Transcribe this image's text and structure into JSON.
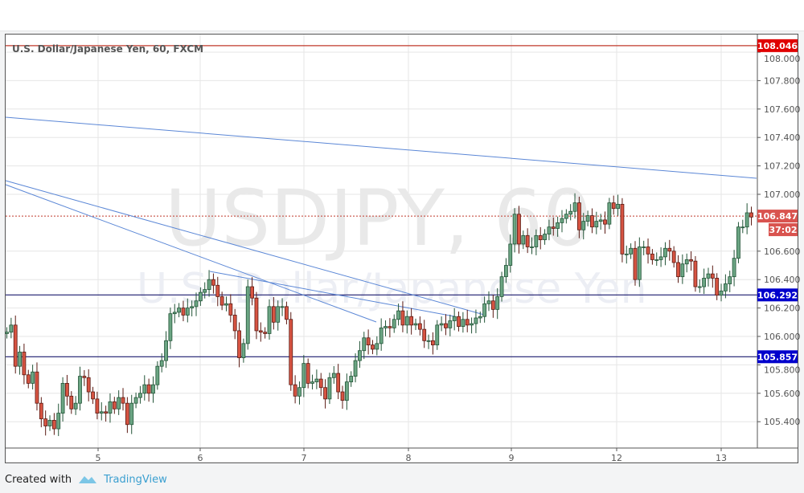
{
  "chart_data": {
    "type": "candlestick",
    "title": "U.S. Dollar/Japanese Yen, 60, FXCM",
    "watermark_symbol": "USDJPY, 60",
    "watermark_name": "U.S. Dollar/Japanese Yen",
    "ylim": [
      105.22,
      108.13
    ],
    "y_ticks": [
      "108.000",
      "107.800",
      "107.600",
      "107.400",
      "107.200",
      "107.000",
      "106.600",
      "106.400",
      "106.200",
      "106.000",
      "105.800",
      "105.600",
      "105.400"
    ],
    "x_ticks": [
      "5",
      "6",
      "7",
      "8",
      "9",
      "12",
      "13"
    ],
    "grid": true,
    "first_open": 106.02,
    "closes": [
      106.03,
      106.08,
      105.79,
      105.89,
      105.73,
      105.67,
      105.75,
      105.53,
      105.42,
      105.37,
      105.41,
      105.35,
      105.46,
      105.67,
      105.58,
      105.49,
      105.53,
      105.72,
      105.71,
      105.61,
      105.56,
      105.46,
      105.47,
      105.46,
      105.54,
      105.49,
      105.57,
      105.53,
      105.38,
      105.53,
      105.57,
      105.6,
      105.66,
      105.6,
      105.66,
      105.79,
      105.83,
      105.97,
      106.16,
      106.17,
      106.2,
      106.15,
      106.2,
      106.21,
      106.25,
      106.31,
      106.33,
      106.4,
      106.36,
      106.28,
      106.22,
      106.23,
      106.15,
      106.04,
      105.85,
      105.95,
      106.35,
      106.27,
      106.04,
      106.03,
      106.02,
      106.21,
      106.1,
      106.21,
      106.21,
      106.12,
      105.66,
      105.58,
      105.64,
      105.81,
      105.67,
      105.68,
      105.7,
      105.64,
      105.56,
      105.71,
      105.74,
      105.61,
      105.55,
      105.68,
      105.72,
      105.83,
      105.9,
      105.99,
      105.94,
      105.91,
      105.95,
      106.06,
      106.07,
      106.06,
      106.12,
      106.18,
      106.08,
      106.14,
      106.08,
      106.09,
      106.05,
      105.97,
      105.97,
      105.94,
      106.08,
      106.09,
      106.06,
      106.11,
      106.14,
      106.07,
      106.12,
      106.08,
      106.09,
      106.13,
      106.14,
      106.23,
      106.25,
      106.19,
      106.28,
      106.42,
      106.5,
      106.65,
      106.86,
      106.65,
      106.71,
      106.63,
      106.63,
      106.71,
      106.68,
      106.72,
      106.77,
      106.76,
      106.8,
      106.83,
      106.86,
      106.88,
      106.94,
      106.75,
      106.81,
      106.85,
      106.77,
      106.81,
      106.82,
      106.79,
      106.94,
      106.9,
      106.93,
      106.58,
      106.58,
      106.62,
      106.4,
      106.63,
      106.63,
      106.58,
      106.54,
      106.54,
      106.56,
      106.62,
      106.6,
      106.52,
      106.42,
      106.51,
      106.54,
      106.53,
      106.35,
      106.35,
      106.41,
      106.44,
      106.41,
      106.29,
      106.32,
      106.37,
      106.42,
      106.55,
      106.77,
      106.77,
      106.87,
      106.84
    ],
    "horizontal_levels": [
      {
        "value": 108.046,
        "label": "108.046",
        "color": "#e00000"
      },
      {
        "value": 106.292,
        "label": "106.292",
        "color": "#0000cc"
      },
      {
        "value": 105.857,
        "label": "105.857",
        "color": "#0000cc"
      }
    ],
    "last_price": {
      "label": "106.847",
      "value": 106.847,
      "countdown": "37:02",
      "color": "#d9534f"
    },
    "trendline_color": "#5b87d6",
    "colors": {
      "up": "#6ba583",
      "up_border": "#225437",
      "down": "#d75442",
      "down_border": "#5b1a13"
    }
  },
  "footer": {
    "created_with": "Created with",
    "brand": "TradingView"
  }
}
